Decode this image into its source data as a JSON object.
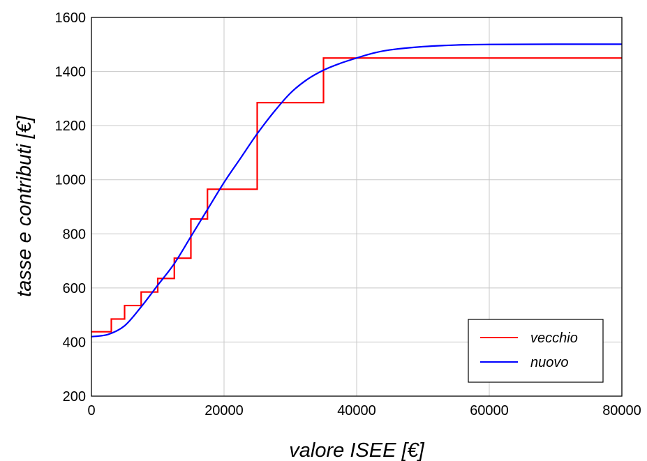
{
  "chart_data": {
    "type": "line",
    "title": "",
    "xlabel": "valore ISEE [€]",
    "ylabel": "tasse e contributi [€]",
    "xlim": [
      0,
      80000
    ],
    "ylim": [
      200,
      1600
    ],
    "x_ticks": [
      0,
      20000,
      40000,
      60000,
      80000
    ],
    "y_ticks": [
      200,
      400,
      600,
      800,
      1000,
      1200,
      1400,
      1600
    ],
    "x_tick_labels": [
      "0",
      "20000",
      "40000",
      "60000",
      "80000"
    ],
    "y_tick_labels": [
      "200",
      "400",
      "600",
      "800",
      "1000",
      "1200",
      "1400",
      "1600"
    ],
    "grid": true,
    "legend_position": "bottom-right",
    "series": [
      {
        "name": "vecchio",
        "color": "#ff0000",
        "style": "step",
        "x": [
          0,
          3000,
          3000,
          5000,
          5000,
          7500,
          7500,
          10000,
          10000,
          12500,
          12500,
          15000,
          15000,
          17500,
          17500,
          25000,
          25000,
          35000,
          35000,
          80000
        ],
        "y": [
          438,
          438,
          485,
          485,
          535,
          535,
          585,
          585,
          635,
          635,
          710,
          710,
          855,
          855,
          965,
          965,
          1285,
          1285,
          1450,
          1450
        ]
      },
      {
        "name": "nuovo",
        "color": "#0000ff",
        "style": "smooth",
        "x": [
          0,
          2500,
          5000,
          7500,
          10000,
          12500,
          15000,
          17500,
          20000,
          22500,
          25000,
          27500,
          30000,
          32500,
          35000,
          37500,
          40000,
          42500,
          45000,
          50000,
          55000,
          60000,
          70000,
          80000
        ],
        "y": [
          420,
          428,
          460,
          530,
          610,
          690,
          790,
          890,
          990,
          1080,
          1170,
          1250,
          1320,
          1370,
          1405,
          1430,
          1450,
          1468,
          1480,
          1492,
          1498,
          1500,
          1501,
          1501
        ]
      }
    ]
  }
}
